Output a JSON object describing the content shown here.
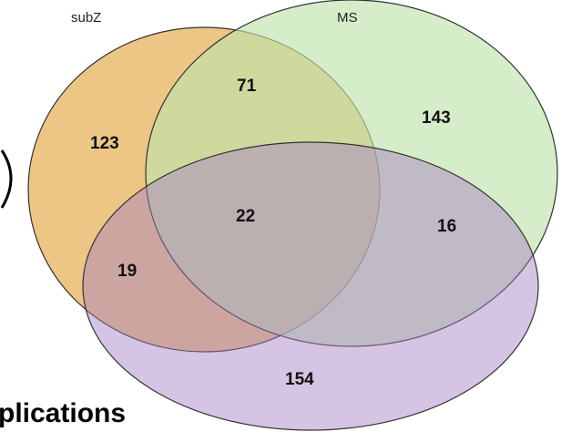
{
  "sets": [
    {
      "label": "subZ",
      "color": "#e8b664"
    },
    {
      "label": "MS",
      "color": "#b6dea3"
    },
    {
      "label": "",
      "color": "#c09bd6"
    }
  ],
  "regions": {
    "subZ_only": "123",
    "subZ_MS": "71",
    "MS_only": "143",
    "all_three": "22",
    "MS_third": "16",
    "subZ_third": "19",
    "third_only": "154"
  },
  "background_text": "plications"
}
